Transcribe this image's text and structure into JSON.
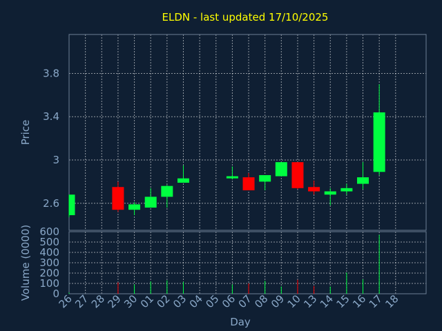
{
  "chart_data": {
    "type": "candlestick",
    "title": "ELDN - last updated 17/10/2025",
    "xlabel": "Day",
    "ylabel_price": "Price",
    "ylabel_volume": "Volume (0000)",
    "x_labels": [
      "26",
      "27",
      "28",
      "29",
      "30",
      "01",
      "02",
      "03",
      "04",
      "05",
      "06",
      "07",
      "08",
      "09",
      "10",
      "13",
      "14",
      "15",
      "16",
      "17",
      "18"
    ],
    "price_axis": {
      "ylim": [
        2.35,
        4.16
      ],
      "ticks": [
        "2.6",
        "3",
        "3.4",
        "3.8"
      ],
      "tick_values": [
        2.6,
        3.0,
        3.4,
        3.8
      ]
    },
    "volume_axis": {
      "ylim": [
        0,
        600
      ],
      "ticks": [
        "0",
        "100",
        "200",
        "300",
        "400",
        "500",
        "600"
      ],
      "tick_values": [
        0,
        100,
        200,
        300,
        400,
        500,
        600
      ]
    },
    "grid": true,
    "colors": {
      "up": "#00ff40",
      "down": "#ff0000",
      "title": "#ffff00",
      "axis_text": "#8aa8c8",
      "background": "#0f1f33",
      "grid": "#ffffff"
    },
    "candles": [
      {
        "day": "26",
        "open": 2.49,
        "high": 2.68,
        "low": 2.47,
        "close": 2.68
      },
      {
        "day": "29",
        "open": 2.75,
        "high": 2.8,
        "low": 2.52,
        "close": 2.54
      },
      {
        "day": "30",
        "open": 2.54,
        "high": 2.61,
        "low": 2.49,
        "close": 2.59
      },
      {
        "day": "01",
        "open": 2.56,
        "high": 2.74,
        "low": 2.56,
        "close": 2.66
      },
      {
        "day": "02",
        "open": 2.66,
        "high": 2.77,
        "low": 2.56,
        "close": 2.76
      },
      {
        "day": "03",
        "open": 2.79,
        "high": 2.95,
        "low": 2.79,
        "close": 2.83
      },
      {
        "day": "06",
        "open": 2.83,
        "high": 2.94,
        "low": 2.82,
        "close": 2.85
      },
      {
        "day": "07",
        "open": 2.84,
        "high": 2.88,
        "low": 2.72,
        "close": 2.72
      },
      {
        "day": "08",
        "open": 2.8,
        "high": 2.86,
        "low": 2.72,
        "close": 2.86
      },
      {
        "day": "09",
        "open": 2.85,
        "high": 2.98,
        "low": 2.85,
        "close": 2.98
      },
      {
        "day": "10",
        "open": 2.98,
        "high": 2.98,
        "low": 2.73,
        "close": 2.74
      },
      {
        "day": "13",
        "open": 2.75,
        "high": 2.81,
        "low": 2.68,
        "close": 2.71
      },
      {
        "day": "14",
        "open": 2.68,
        "high": 2.74,
        "low": 2.58,
        "close": 2.71
      },
      {
        "day": "15",
        "open": 2.71,
        "high": 2.78,
        "low": 2.68,
        "close": 2.74
      },
      {
        "day": "16",
        "open": 2.78,
        "high": 2.98,
        "low": 2.73,
        "close": 2.84
      },
      {
        "day": "17",
        "open": 2.89,
        "high": 3.7,
        "low": 2.86,
        "close": 3.44
      }
    ],
    "volume": [
      {
        "day": "26",
        "value": 12,
        "dir": "up"
      },
      {
        "day": "29",
        "value": 110,
        "dir": "down"
      },
      {
        "day": "30",
        "value": 90,
        "dir": "up"
      },
      {
        "day": "01",
        "value": 120,
        "dir": "up"
      },
      {
        "day": "02",
        "value": 130,
        "dir": "up"
      },
      {
        "day": "03",
        "value": 115,
        "dir": "up"
      },
      {
        "day": "06",
        "value": 90,
        "dir": "up"
      },
      {
        "day": "07",
        "value": 100,
        "dir": "down"
      },
      {
        "day": "08",
        "value": 125,
        "dir": "up"
      },
      {
        "day": "09",
        "value": 70,
        "dir": "up"
      },
      {
        "day": "10",
        "value": 135,
        "dir": "down"
      },
      {
        "day": "13",
        "value": 75,
        "dir": "down"
      },
      {
        "day": "14",
        "value": 70,
        "dir": "up"
      },
      {
        "day": "15",
        "value": 205,
        "dir": "up"
      },
      {
        "day": "16",
        "value": 140,
        "dir": "up"
      },
      {
        "day": "17",
        "value": 570,
        "dir": "up"
      }
    ]
  }
}
